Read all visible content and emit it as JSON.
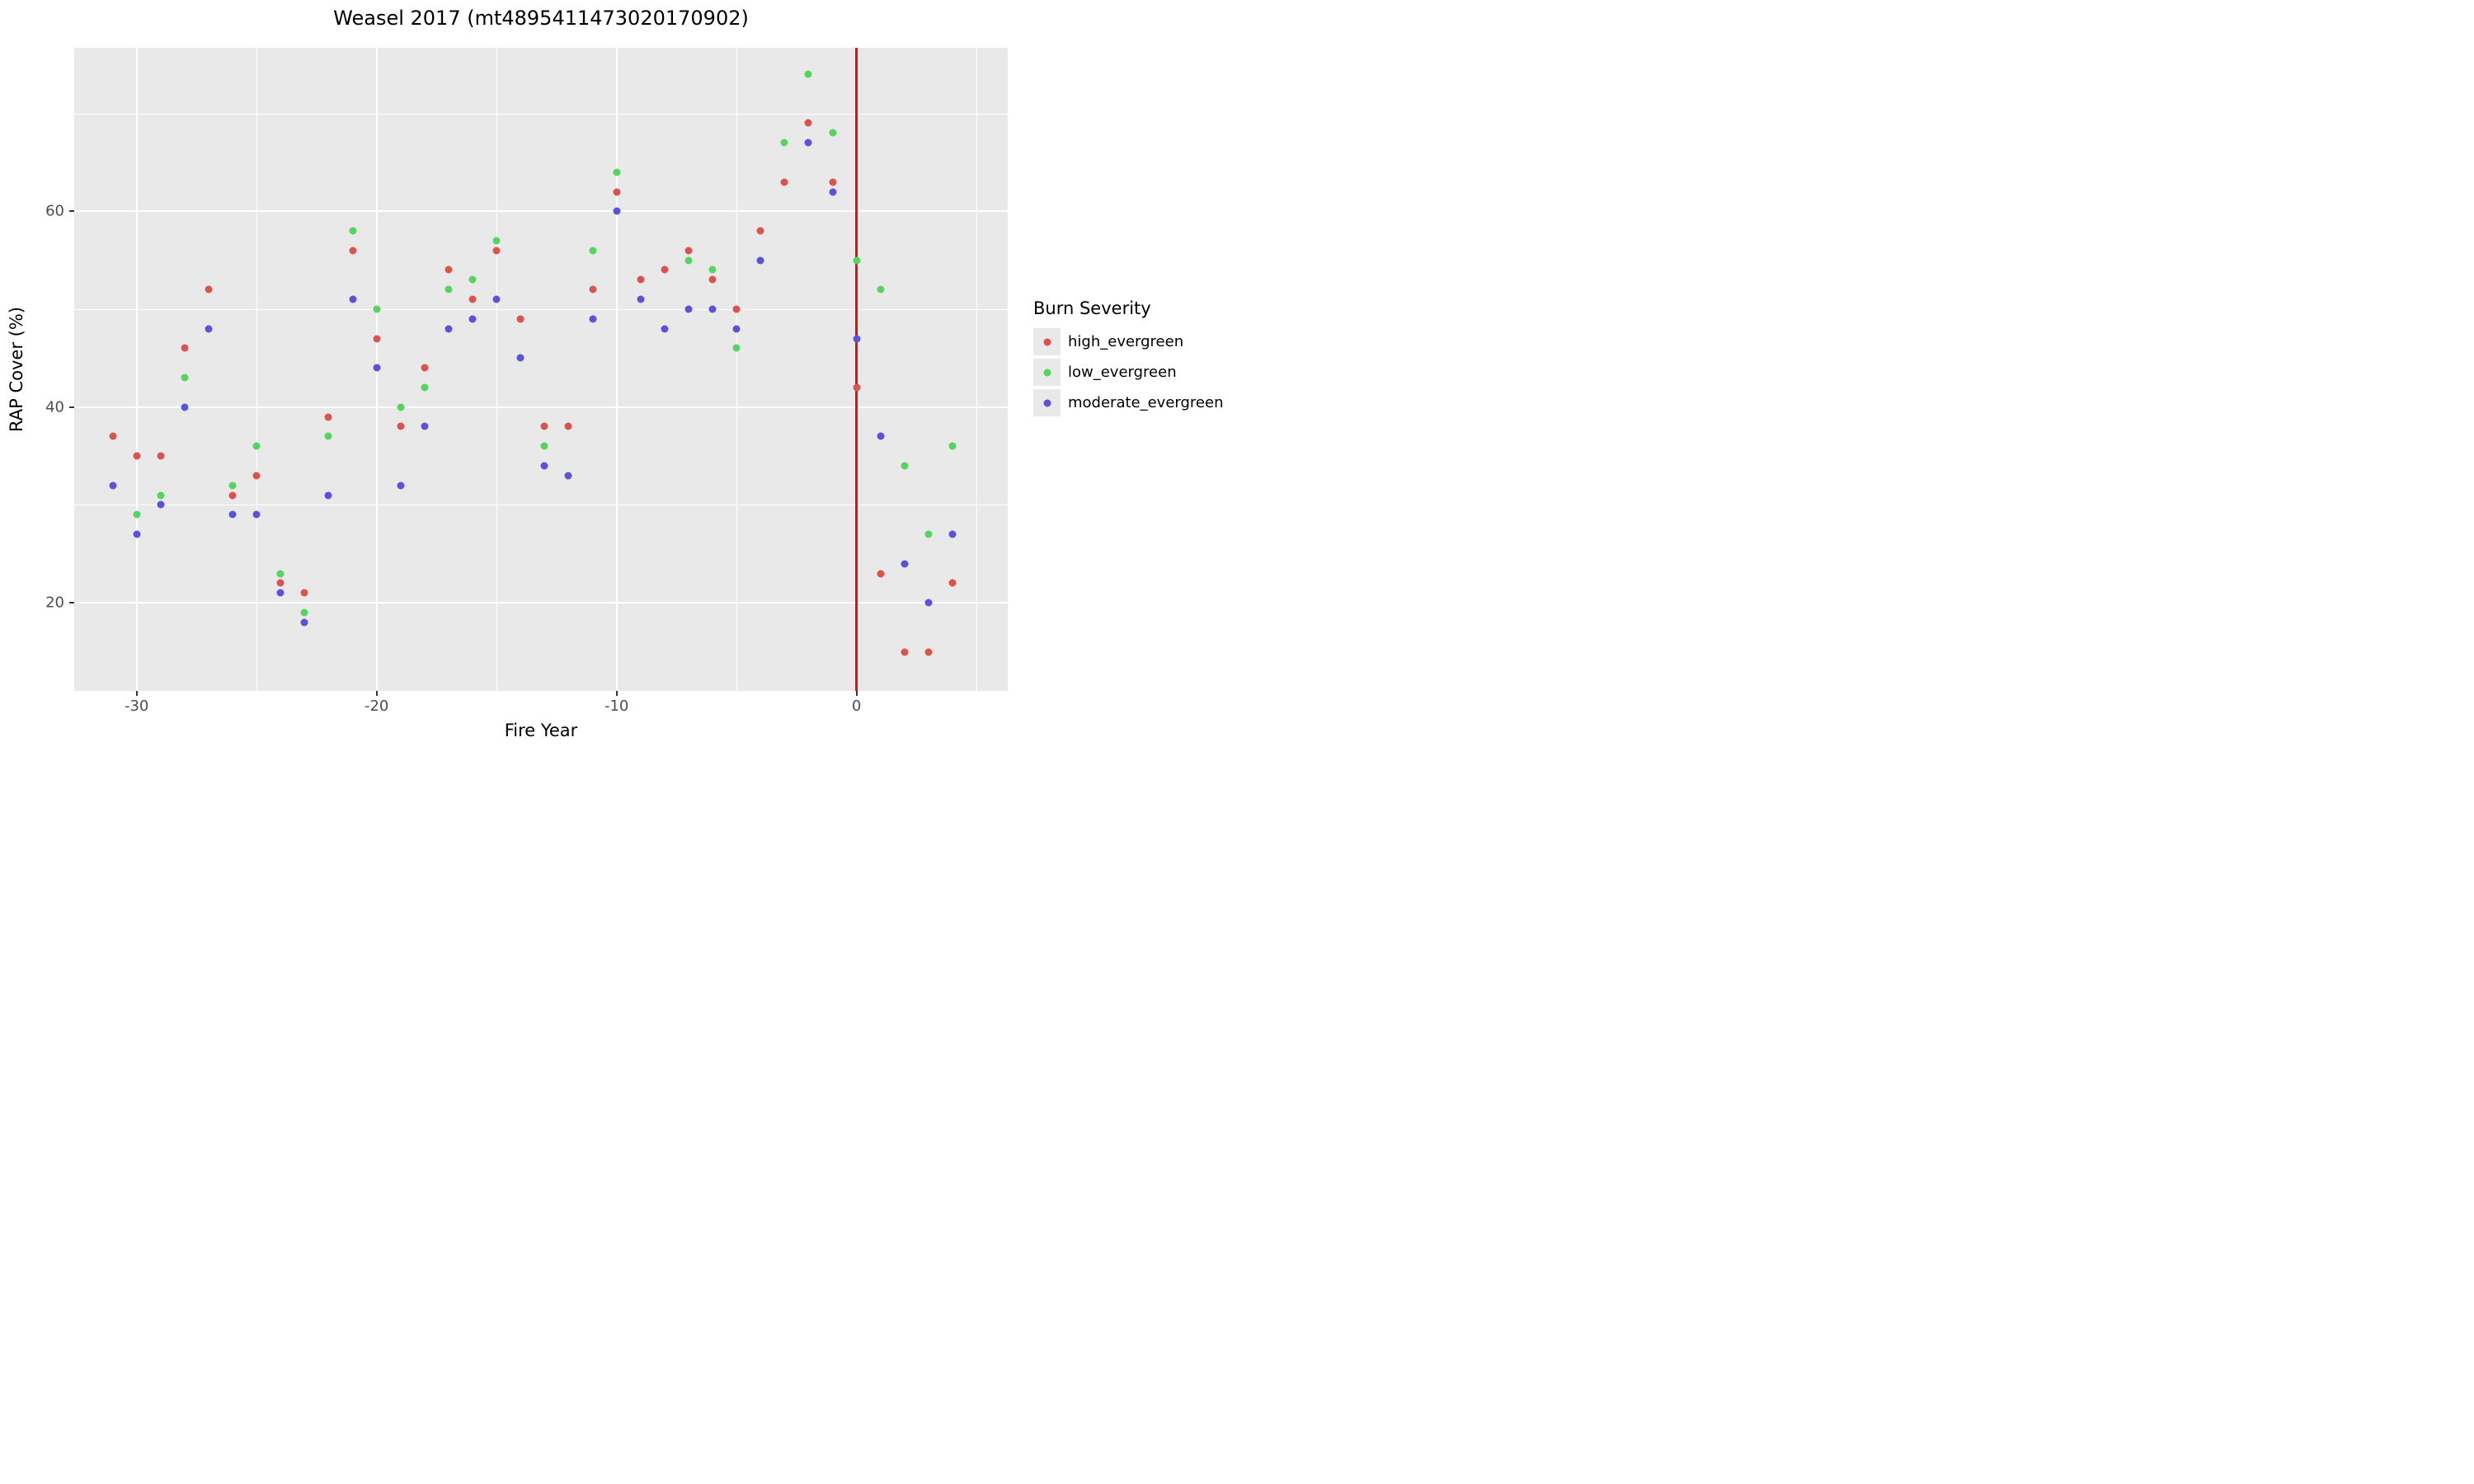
{
  "figure": {
    "background": "#ffffff",
    "panel_background": "#e9e9e9",
    "gridline_color": "#ffffff"
  },
  "chart_data": {
    "type": "scatter",
    "title": "Weasel 2017 (mt4895411473020170902)",
    "xlabel": "Fire Year",
    "ylabel": "RAP Cover (%)",
    "xlim": [
      -32.6,
      6.3
    ],
    "ylim": [
      11.0,
      76.7
    ],
    "x_major_ticks": [
      -30,
      -20,
      -10,
      0
    ],
    "x_minor_gridlines": [
      -25,
      -15,
      -5,
      5
    ],
    "y_major_ticks": [
      20,
      40,
      60
    ],
    "y_minor_gridlines": [
      30,
      50,
      70
    ],
    "grid": "on",
    "legend_title": "Burn Severity",
    "legend_position": "right",
    "vline": {
      "x": 0,
      "color": "#f40b00"
    },
    "series": [
      {
        "name": "high_evergreen",
        "color": "#d9544f",
        "points": [
          [
            -31,
            37
          ],
          [
            -30,
            35
          ],
          [
            -29,
            35
          ],
          [
            -28,
            46
          ],
          [
            -27,
            52
          ],
          [
            -26,
            31
          ],
          [
            -25,
            33
          ],
          [
            -24,
            22
          ],
          [
            -23,
            21
          ],
          [
            -22,
            39
          ],
          [
            -21,
            56
          ],
          [
            -20,
            47
          ],
          [
            -19,
            38
          ],
          [
            -18,
            44
          ],
          [
            -17,
            54
          ],
          [
            -16,
            51
          ],
          [
            -15,
            56
          ],
          [
            -14,
            49
          ],
          [
            -13,
            38
          ],
          [
            -12,
            38
          ],
          [
            -11,
            52
          ],
          [
            -10,
            62
          ],
          [
            -9,
            53
          ],
          [
            -8,
            54
          ],
          [
            -7,
            56
          ],
          [
            -6,
            53
          ],
          [
            -5,
            50
          ],
          [
            -4,
            58
          ],
          [
            -3,
            63
          ],
          [
            -2,
            69
          ],
          [
            -1,
            63
          ],
          [
            0,
            42
          ],
          [
            1,
            23
          ],
          [
            2,
            15
          ],
          [
            3,
            15
          ],
          [
            4,
            22
          ]
        ]
      },
      {
        "name": "low_evergreen",
        "color": "#55d45f",
        "points": [
          [
            -30,
            29
          ],
          [
            -29,
            31
          ],
          [
            -28,
            43
          ],
          [
            -26,
            32
          ],
          [
            -25,
            36
          ],
          [
            -24,
            23
          ],
          [
            -23,
            19
          ],
          [
            -22,
            37
          ],
          [
            -21,
            58
          ],
          [
            -20,
            50
          ],
          [
            -19,
            40
          ],
          [
            -18,
            42
          ],
          [
            -17,
            52
          ],
          [
            -16,
            53
          ],
          [
            -15,
            57
          ],
          [
            -13,
            36
          ],
          [
            -11,
            56
          ],
          [
            -10,
            64
          ],
          [
            -7,
            55
          ],
          [
            -6,
            54
          ],
          [
            -5,
            46
          ],
          [
            -3,
            67
          ],
          [
            -2,
            74
          ],
          [
            -1,
            68
          ],
          [
            0,
            55
          ],
          [
            1,
            52
          ],
          [
            2,
            34
          ],
          [
            3,
            27
          ],
          [
            4,
            36
          ]
        ]
      },
      {
        "name": "moderate_evergreen",
        "color": "#5a52d9",
        "points": [
          [
            -31,
            32
          ],
          [
            -30,
            27
          ],
          [
            -29,
            30
          ],
          [
            -28,
            40
          ],
          [
            -27,
            48
          ],
          [
            -26,
            29
          ],
          [
            -25,
            29
          ],
          [
            -24,
            21
          ],
          [
            -23,
            18
          ],
          [
            -22,
            31
          ],
          [
            -21,
            51
          ],
          [
            -20,
            44
          ],
          [
            -19,
            32
          ],
          [
            -18,
            38
          ],
          [
            -17,
            48
          ],
          [
            -16,
            49
          ],
          [
            -15,
            51
          ],
          [
            -14,
            45
          ],
          [
            -13,
            34
          ],
          [
            -12,
            33
          ],
          [
            -11,
            49
          ],
          [
            -10,
            60
          ],
          [
            -9,
            51
          ],
          [
            -8,
            48
          ],
          [
            -7,
            50
          ],
          [
            -6,
            50
          ],
          [
            -5,
            48
          ],
          [
            -4,
            55
          ],
          [
            -2,
            67
          ],
          [
            -1,
            62
          ],
          [
            0,
            47
          ],
          [
            1,
            37
          ],
          [
            2,
            24
          ],
          [
            3,
            20
          ],
          [
            4,
            27
          ]
        ]
      }
    ]
  }
}
